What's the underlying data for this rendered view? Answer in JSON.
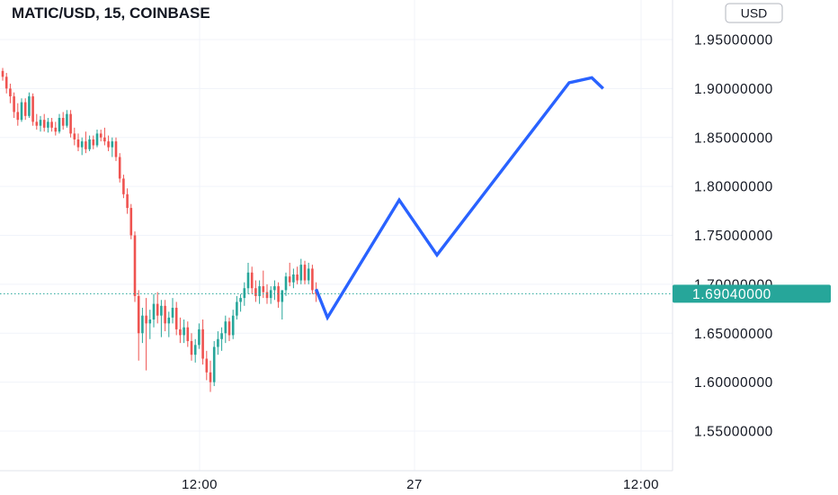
{
  "header": {
    "title": "MATIC/USD, 15, COINBASE"
  },
  "currency_button": {
    "label": "USD"
  },
  "chart_data": {
    "type": "candlestick",
    "title": "MATIC/USD, 15, COINBASE",
    "ylim": [
      1.52,
      1.98
    ],
    "y_ticks": [
      {
        "value": 1.95,
        "label": "1.95000000"
      },
      {
        "value": 1.9,
        "label": "1.90000000"
      },
      {
        "value": 1.85,
        "label": "1.85000000"
      },
      {
        "value": 1.8,
        "label": "1.80000000"
      },
      {
        "value": 1.75,
        "label": "1.75000000"
      },
      {
        "value": 1.7,
        "label": "1.70000000"
      },
      {
        "value": 1.65,
        "label": "1.65000000"
      },
      {
        "value": 1.6,
        "label": "1.60000000"
      },
      {
        "value": 1.55,
        "label": "1.55000000"
      }
    ],
    "x_ticks": [
      "12:00",
      "27",
      "12:00"
    ],
    "grid": true,
    "current_price": {
      "value": 1.6904,
      "label": "1.69040000"
    },
    "colors": {
      "up": "#26a69a",
      "down": "#ef5350",
      "projection": "#2962ff",
      "price_line": "#26a69a"
    },
    "candles": [
      [
        1.918,
        1.921,
        1.908,
        1.912
      ],
      [
        1.912,
        1.916,
        1.895,
        1.9
      ],
      [
        1.9,
        1.905,
        1.885,
        1.892
      ],
      [
        1.892,
        1.896,
        1.87,
        1.876
      ],
      [
        1.876,
        1.885,
        1.862,
        1.868
      ],
      [
        1.868,
        1.89,
        1.866,
        1.886
      ],
      [
        1.886,
        1.89,
        1.868,
        1.872
      ],
      [
        1.872,
        1.896,
        1.87,
        1.892
      ],
      [
        1.892,
        1.895,
        1.862,
        1.866
      ],
      [
        1.866,
        1.874,
        1.858,
        1.862
      ],
      [
        1.862,
        1.872,
        1.856,
        1.868
      ],
      [
        1.868,
        1.874,
        1.856,
        1.86
      ],
      [
        1.86,
        1.87,
        1.855,
        1.866
      ],
      [
        1.866,
        1.87,
        1.856,
        1.86
      ],
      [
        1.86,
        1.866,
        1.852,
        1.856
      ],
      [
        1.856,
        1.874,
        1.854,
        1.87
      ],
      [
        1.87,
        1.876,
        1.858,
        1.862
      ],
      [
        1.862,
        1.878,
        1.86,
        1.874
      ],
      [
        1.874,
        1.878,
        1.85,
        1.854
      ],
      [
        1.854,
        1.86,
        1.842,
        1.848
      ],
      [
        1.848,
        1.854,
        1.836,
        1.84
      ],
      [
        1.84,
        1.85,
        1.832,
        1.846
      ],
      [
        1.846,
        1.856,
        1.834,
        1.838
      ],
      [
        1.838,
        1.852,
        1.836,
        1.848
      ],
      [
        1.848,
        1.852,
        1.838,
        1.842
      ],
      [
        1.842,
        1.858,
        1.84,
        1.854
      ],
      [
        1.854,
        1.858,
        1.846,
        1.85
      ],
      [
        1.85,
        1.86,
        1.842,
        1.846
      ],
      [
        1.846,
        1.852,
        1.836,
        1.84
      ],
      [
        1.84,
        1.85,
        1.83,
        1.846
      ],
      [
        1.846,
        1.85,
        1.826,
        1.83
      ],
      [
        1.83,
        1.834,
        1.804,
        1.808
      ],
      [
        1.808,
        1.812,
        1.788,
        1.792
      ],
      [
        1.792,
        1.798,
        1.772,
        1.778
      ],
      [
        1.778,
        1.782,
        1.746,
        1.75
      ],
      [
        1.75,
        1.754,
        1.682,
        1.688
      ],
      [
        1.688,
        1.694,
        1.622,
        1.65
      ],
      [
        1.65,
        1.676,
        1.64,
        1.668
      ],
      [
        1.668,
        1.686,
        1.612,
        1.66
      ],
      [
        1.66,
        1.674,
        1.644,
        1.664
      ],
      [
        1.664,
        1.69,
        1.656,
        1.68
      ],
      [
        1.68,
        1.692,
        1.66,
        1.668
      ],
      [
        1.668,
        1.684,
        1.646,
        1.678
      ],
      [
        1.678,
        1.684,
        1.652,
        1.66
      ],
      [
        1.66,
        1.672,
        1.646,
        1.666
      ],
      [
        1.666,
        1.686,
        1.66,
        1.676
      ],
      [
        1.676,
        1.682,
        1.648,
        1.654
      ],
      [
        1.654,
        1.666,
        1.64,
        1.648
      ],
      [
        1.648,
        1.664,
        1.64,
        1.656
      ],
      [
        1.656,
        1.662,
        1.636,
        1.642
      ],
      [
        1.642,
        1.65,
        1.622,
        1.628
      ],
      [
        1.628,
        1.644,
        1.62,
        1.638
      ],
      [
        1.638,
        1.66,
        1.634,
        1.654
      ],
      [
        1.654,
        1.664,
        1.618,
        1.624
      ],
      [
        1.624,
        1.632,
        1.602,
        1.61
      ],
      [
        1.61,
        1.622,
        1.59,
        1.6
      ],
      [
        1.6,
        1.642,
        1.596,
        1.636
      ],
      [
        1.636,
        1.652,
        1.628,
        1.644
      ],
      [
        1.644,
        1.656,
        1.632,
        1.65
      ],
      [
        1.65,
        1.668,
        1.64,
        1.662
      ],
      [
        1.662,
        1.666,
        1.642,
        1.648
      ],
      [
        1.648,
        1.674,
        1.644,
        1.668
      ],
      [
        1.668,
        1.688,
        1.664,
        1.682
      ],
      [
        1.682,
        1.69,
        1.672,
        1.686
      ],
      [
        1.686,
        1.702,
        1.678,
        1.696
      ],
      [
        1.696,
        1.722,
        1.69,
        1.712
      ],
      [
        1.712,
        1.718,
        1.69,
        1.696
      ],
      [
        1.696,
        1.704,
        1.682,
        1.688
      ],
      [
        1.688,
        1.704,
        1.68,
        1.698
      ],
      [
        1.698,
        1.714,
        1.686,
        1.692
      ],
      [
        1.692,
        1.7,
        1.68,
        1.686
      ],
      [
        1.686,
        1.698,
        1.68,
        1.694
      ],
      [
        1.694,
        1.704,
        1.684,
        1.698
      ],
      [
        1.698,
        1.702,
        1.676,
        1.682
      ],
      [
        1.682,
        1.69,
        1.664,
        1.694
      ],
      [
        1.694,
        1.712,
        1.688,
        1.708
      ],
      [
        1.708,
        1.722,
        1.698,
        1.702
      ],
      [
        1.702,
        1.716,
        1.696,
        1.71
      ],
      [
        1.71,
        1.718,
        1.7,
        1.704
      ],
      [
        1.704,
        1.726,
        1.7,
        1.72
      ],
      [
        1.72,
        1.724,
        1.7,
        1.704
      ],
      [
        1.704,
        1.722,
        1.7,
        1.716
      ],
      [
        1.716,
        1.72,
        1.69,
        1.694
      ],
      [
        1.694,
        1.702,
        1.682,
        1.69
      ]
    ],
    "projection": [
      {
        "x": 0,
        "y": 1.695
      },
      {
        "x": 3,
        "y": 1.666
      },
      {
        "x": 22,
        "y": 1.786
      },
      {
        "x": 32,
        "y": 1.73
      },
      {
        "x": 67,
        "y": 1.906
      },
      {
        "x": 73,
        "y": 1.911
      },
      {
        "x": 76,
        "y": 1.9
      }
    ]
  }
}
